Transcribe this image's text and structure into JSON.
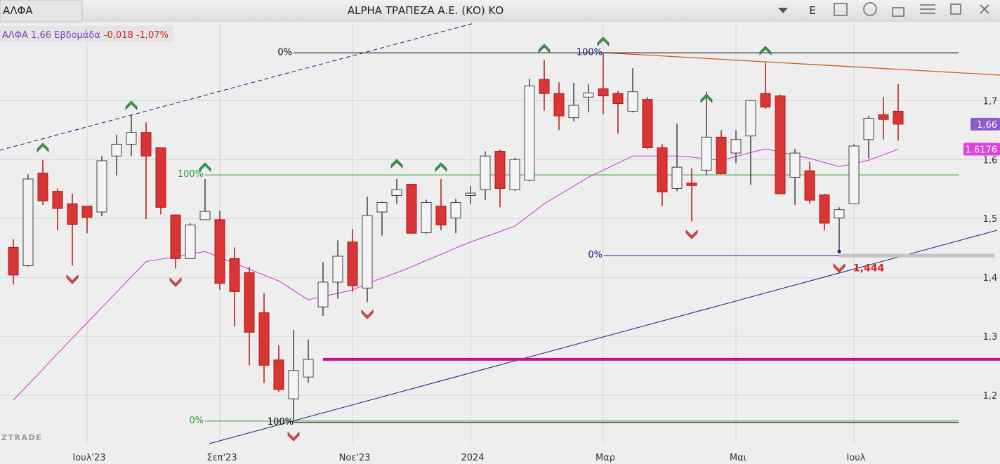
{
  "header": {
    "tab": "ΑΛΦΑ",
    "title": "ALPHA ΤΡΑΠΕΖΑ Α.Ε. (ΚΟ) ΚΟ",
    "button": "E"
  },
  "chart_data": {
    "type": "candlestick",
    "legend": {
      "symbol": "ΑΛΦΑ 1,66 Εβδομάδα",
      "change": "-0,018 -1,07%"
    },
    "watermark": "ZTRADE",
    "categories": [
      null,
      null,
      null,
      null,
      null,
      "Ιουλ'23",
      null,
      null,
      null,
      null,
      null,
      null,
      null,
      null,
      "Σεπ'23",
      null,
      null,
      null,
      null,
      null,
      null,
      null,
      null,
      "Νοε'23",
      null,
      null,
      null,
      null,
      null,
      null,
      null,
      "2024",
      null,
      null,
      null,
      null,
      null,
      null,
      null,
      null,
      "Μαρ",
      null,
      null,
      null,
      null,
      null,
      null,
      null,
      null,
      "Μαι",
      null,
      null,
      null,
      null,
      null,
      null,
      null,
      "Ιουλ",
      null,
      null,
      null
    ],
    "open": [
      1.451,
      1.42,
      1.577,
      1.546,
      1.525,
      1.521,
      1.511,
      1.606,
      1.626,
      1.646,
      1.62,
      1.506,
      1.432,
      1.498,
      1.498,
      1.432,
      1.408,
      1.34,
      1.26,
      1.194,
      1.231,
      1.35,
      1.392,
      1.46,
      1.382,
      1.511,
      1.539,
      1.558,
      1.476,
      1.521,
      1.501,
      1.539,
      1.549,
      1.614,
      1.549,
      1.565,
      1.736,
      1.712,
      1.671,
      1.706,
      1.72,
      1.712,
      1.682,
      1.702,
      1.62,
      1.551,
      1.56,
      1.582,
      1.638,
      1.611,
      1.64,
      1.712,
      1.708,
      1.57,
      1.581,
      1.54,
      1.501,
      1.525,
      1.634,
      1.676,
      1.682
    ],
    "high": [
      1.465,
      1.575,
      1.599,
      1.551,
      1.542,
      1.521,
      1.606,
      1.642,
      1.676,
      1.663,
      1.62,
      1.507,
      1.492,
      1.567,
      1.513,
      1.451,
      1.418,
      1.373,
      1.285,
      1.311,
      1.295,
      1.426,
      1.463,
      1.482,
      1.537,
      1.529,
      1.567,
      1.558,
      1.532,
      1.567,
      1.533,
      1.555,
      1.614,
      1.617,
      1.603,
      1.737,
      1.769,
      1.731,
      1.73,
      1.728,
      1.781,
      1.716,
      1.755,
      1.706,
      1.626,
      1.661,
      1.585,
      1.715,
      1.65,
      1.65,
      1.7,
      1.765,
      1.71,
      1.618,
      1.596,
      1.542,
      1.519,
      1.626,
      1.674,
      1.706,
      1.728
    ],
    "low": [
      1.388,
      1.418,
      1.523,
      1.48,
      1.42,
      1.475,
      1.504,
      1.573,
      1.606,
      1.499,
      1.507,
      1.415,
      1.432,
      1.498,
      1.379,
      1.317,
      1.251,
      1.221,
      1.206,
      1.154,
      1.221,
      1.335,
      1.364,
      1.376,
      1.358,
      1.471,
      1.525,
      1.475,
      1.474,
      1.48,
      1.475,
      1.525,
      1.531,
      1.519,
      1.547,
      1.563,
      1.683,
      1.65,
      1.665,
      1.68,
      1.677,
      1.644,
      1.68,
      1.618,
      1.521,
      1.546,
      1.495,
      1.573,
      1.575,
      1.594,
      1.557,
      1.686,
      1.542,
      1.523,
      1.525,
      1.48,
      1.444,
      1.525,
      1.602,
      1.634,
      1.632
    ],
    "close": [
      1.404,
      1.567,
      1.53,
      1.517,
      1.49,
      1.502,
      1.598,
      1.626,
      1.646,
      1.606,
      1.519,
      1.432,
      1.489,
      1.512,
      1.39,
      1.376,
      1.307,
      1.251,
      1.21,
      1.242,
      1.261,
      1.392,
      1.436,
      1.386,
      1.505,
      1.527,
      1.549,
      1.475,
      1.527,
      1.489,
      1.527,
      1.543,
      1.606,
      1.551,
      1.6,
      1.725,
      1.712,
      1.674,
      1.692,
      1.713,
      1.708,
      1.695,
      1.715,
      1.62,
      1.545,
      1.587,
      1.556,
      1.638,
      1.576,
      1.634,
      1.7,
      1.689,
      1.542,
      1.611,
      1.531,
      1.492,
      1.515,
      1.623,
      1.67,
      1.668,
      1.66
    ],
    "ma": {
      "color": "#d030d8",
      "values": [
        1.192,
        1.218,
        1.244,
        1.271,
        1.297,
        1.323,
        1.349,
        1.375,
        1.401,
        1.427,
        1.431,
        1.435,
        1.44,
        1.444,
        1.434,
        1.424,
        1.414,
        1.404,
        1.394,
        1.378,
        1.362,
        1.368,
        1.373,
        1.379,
        1.389,
        1.399,
        1.408,
        1.418,
        1.429,
        1.439,
        1.45,
        1.46,
        1.469,
        1.478,
        1.487,
        1.506,
        1.525,
        1.54,
        1.555,
        1.57,
        1.582,
        1.594,
        1.606,
        1.606,
        1.606,
        1.606,
        1.604,
        1.601,
        1.599,
        1.605,
        1.612,
        1.618,
        1.613,
        1.607,
        1.602,
        1.595,
        1.588,
        1.593,
        1.599,
        1.608,
        1.6176
      ]
    },
    "up_color": "#f4f4f4",
    "down_color": "#d93535",
    "close_label": "1,66",
    "ma_label": "1.6176",
    "low_label": "1,444",
    "ylim": [
      1.118,
      1.829
    ],
    "yticks": [
      {
        "value": 1.2,
        "label": "1,2"
      },
      {
        "value": 1.3,
        "label": "1,3"
      },
      {
        "value": 1.4,
        "label": "1,4"
      },
      {
        "value": 1.5,
        "label": "1,5"
      },
      {
        "value": 1.6,
        "label": "1,6"
      },
      {
        "value": 1.7,
        "label": "1,7"
      }
    ],
    "grid": true,
    "fib_levels": [
      {
        "text": "0%",
        "price": 1.781,
        "color": "#000000"
      },
      {
        "text": "100%",
        "price": 1.781,
        "color": "#1a1a80"
      },
      {
        "text": "0%",
        "price": 1.437,
        "color": "#1a1a80"
      },
      {
        "text": "100%",
        "price": 1.574,
        "color": "#2a9d2a"
      },
      {
        "text": "0%",
        "price": 1.155,
        "color": "#2a9d2a"
      },
      {
        "text": "100%",
        "price": 1.155,
        "color": "#000000"
      }
    ],
    "hlines": [
      {
        "price": 1.261,
        "color": "#cc0a8c"
      },
      {
        "price": 1.437,
        "color": "#c4c4c4"
      }
    ]
  }
}
